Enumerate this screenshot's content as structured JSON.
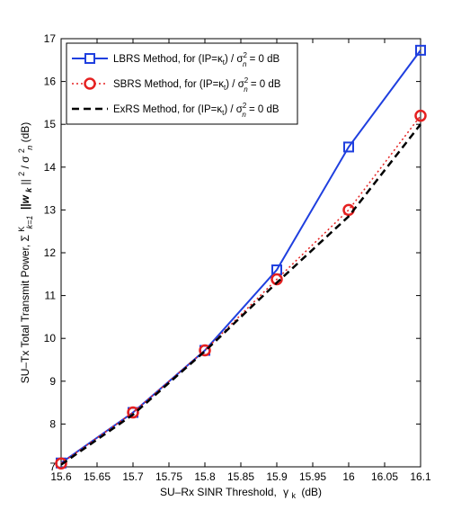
{
  "chart_data": {
    "type": "line",
    "xlabel_text": "SU–Rx SINR Threshold,",
    "xlabel_symbol": "γ",
    "xlabel_sub": "k",
    "xlabel_unit": "(dB)",
    "ylabel_text": "SU–Tx Total Transmit Power,",
    "ylabel_sum": "Σ",
    "ylabel_sum_sup": "K",
    "ylabel_sum_sub": "k=1",
    "ylabel_norm": "||w",
    "ylabel_norm_sub": "k",
    "ylabel_norm_close": "||",
    "ylabel_power": "2",
    "ylabel_sigma": " / σ",
    "ylabel_sigma_sup": "2",
    "ylabel_sigma_sub": "n",
    "ylabel_unit": " (dB)",
    "xlim": [
      15.6,
      16.1
    ],
    "ylim": [
      7,
      17
    ],
    "x_ticks": [
      "15.6",
      "15.65",
      "15.7",
      "15.75",
      "15.8",
      "15.85",
      "15.9",
      "15.95",
      "16",
      "16.05",
      "16.1"
    ],
    "y_ticks": [
      "7",
      "8",
      "9",
      "10",
      "11",
      "12",
      "13",
      "14",
      "15",
      "16",
      "17"
    ],
    "x": [
      15.6,
      15.7,
      15.8,
      15.9,
      16.0,
      16.1
    ],
    "legend_position": "top-left",
    "legend_suffix": {
      "pre": ", for (IP=κ",
      "sub1": "t",
      "mid": ") / σ",
      "sup": "2",
      "sub2": "n",
      "post": " = 0 dB"
    },
    "series": [
      {
        "name": "LBRS Method",
        "values": [
          7.09,
          8.27,
          9.72,
          11.6,
          14.47,
          16.73
        ],
        "color": "#1f3fdf",
        "style": "solid",
        "marker": "square"
      },
      {
        "name": "SBRS Method",
        "values": [
          7.08,
          8.27,
          9.72,
          11.38,
          13.0,
          15.2
        ],
        "color": "#e52020",
        "style": "dotted",
        "marker": "circle"
      },
      {
        "name": "ExRS Method",
        "values": [
          7.05,
          8.22,
          9.7,
          11.3,
          12.85,
          15.0
        ],
        "color": "#000000",
        "style": "dashed",
        "marker": "none"
      }
    ]
  }
}
